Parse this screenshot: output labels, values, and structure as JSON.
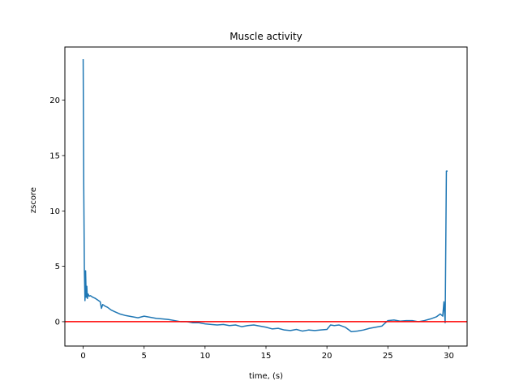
{
  "chart_data": {
    "type": "line",
    "title": "Muscle activity",
    "xlabel": "time, (s)",
    "ylabel": "zscore",
    "xlim": [
      -1.5,
      31.5
    ],
    "ylim": [
      -2.2,
      24.8
    ],
    "xticks": [
      0,
      5,
      10,
      15,
      20,
      25,
      30
    ],
    "yticks": [
      0,
      5,
      10,
      15,
      20
    ],
    "grid": false,
    "series": [
      {
        "color": "#1f77b4",
        "x": [
          0.0,
          0.05,
          0.1,
          0.15,
          0.2,
          0.25,
          0.3,
          0.35,
          0.4,
          0.5,
          0.6,
          0.8,
          1.0,
          1.2,
          1.4,
          1.5,
          1.6,
          1.8,
          2.0,
          2.3,
          2.6,
          3.0,
          3.5,
          4.0,
          4.5,
          5.0,
          5.5,
          6.0,
          6.5,
          7.0,
          7.5,
          8.0,
          8.5,
          9.0,
          9.5,
          10.0,
          10.5,
          11.0,
          11.5,
          12.0,
          12.5,
          13.0,
          13.5,
          14.0,
          14.5,
          15.0,
          15.5,
          16.0,
          16.5,
          17.0,
          17.5,
          18.0,
          18.5,
          19.0,
          19.5,
          20.0,
          20.3,
          20.6,
          21.0,
          21.5,
          22.0,
          22.5,
          23.0,
          23.5,
          24.0,
          24.5,
          25.0,
          25.5,
          26.0,
          26.5,
          27.0,
          27.5,
          28.0,
          28.5,
          29.0,
          29.3,
          29.5,
          29.6,
          29.7,
          29.8,
          29.9
        ],
        "values": [
          23.7,
          12.0,
          4.6,
          1.9,
          4.6,
          2.2,
          3.2,
          2.1,
          2.5,
          2.3,
          2.35,
          2.2,
          2.1,
          1.95,
          1.8,
          1.2,
          1.55,
          1.4,
          1.3,
          1.05,
          0.9,
          0.7,
          0.55,
          0.45,
          0.35,
          0.5,
          0.4,
          0.3,
          0.25,
          0.2,
          0.1,
          0.0,
          0.0,
          -0.1,
          -0.1,
          -0.2,
          -0.25,
          -0.3,
          -0.25,
          -0.35,
          -0.3,
          -0.45,
          -0.35,
          -0.3,
          -0.4,
          -0.5,
          -0.65,
          -0.6,
          -0.75,
          -0.8,
          -0.7,
          -0.85,
          -0.75,
          -0.8,
          -0.75,
          -0.7,
          -0.3,
          -0.35,
          -0.3,
          -0.5,
          -0.9,
          -0.85,
          -0.75,
          -0.6,
          -0.5,
          -0.4,
          0.1,
          0.15,
          0.05,
          0.1,
          0.1,
          0.0,
          0.1,
          0.25,
          0.45,
          0.7,
          0.5,
          1.8,
          -0.1,
          13.6,
          13.6
        ]
      }
    ],
    "reference_lines": [
      {
        "y": 0,
        "color": "#ff0000"
      }
    ]
  }
}
